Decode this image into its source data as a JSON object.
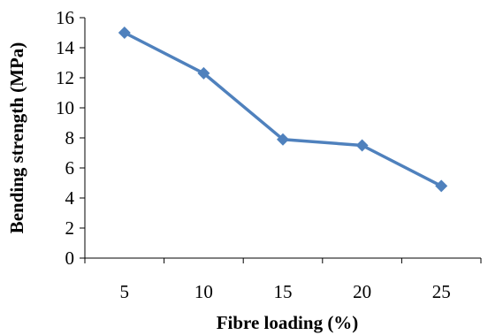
{
  "chart_data": {
    "type": "line",
    "xlabel": "Fibre loading (%)",
    "ylabel": "Bending strength (MPa)",
    "categories": [
      "5",
      "10",
      "15",
      "20",
      "25"
    ],
    "series": [
      {
        "values": [
          15.0,
          12.3,
          7.9,
          7.5,
          4.8
        ],
        "color": "#4f81bd",
        "marker": "diamond"
      }
    ],
    "ylim": [
      0,
      16
    ],
    "yticks": [
      0,
      2,
      4,
      6,
      8,
      10,
      12,
      14,
      16
    ],
    "grid": false,
    "legend": "none"
  }
}
